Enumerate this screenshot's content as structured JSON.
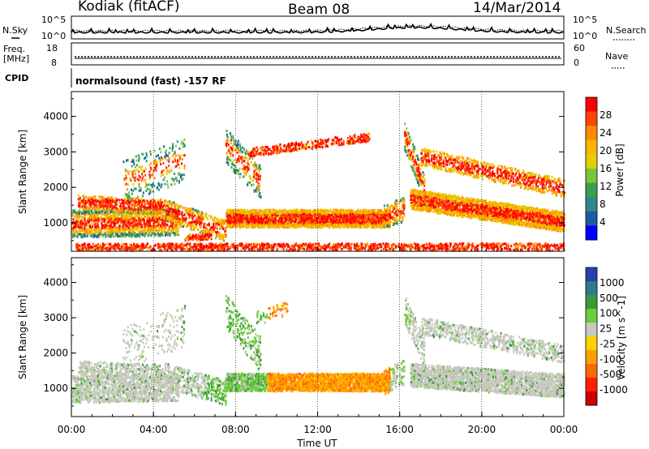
{
  "header": {
    "radar": "Kodiak (fitACF)",
    "beam": "Beam 08",
    "date": "14/Mar/2014"
  },
  "sky_panel": {
    "left_label": "N.Sky",
    "right_label": "N.Search",
    "left_ticks": [
      "10^5",
      "10^0"
    ],
    "right_ticks": [
      "10^5",
      "10^0"
    ]
  },
  "freq_panel": {
    "left_label_1": "Freq.",
    "left_label_2": "[MHz]",
    "right_label": "Nave",
    "left_ticks": [
      "18",
      "8"
    ],
    "right_ticks": [
      "60",
      "0"
    ]
  },
  "cpid_panel": {
    "label": "CPID",
    "mode_text": "normalsound (fast) -157 RF"
  },
  "chart_data": [
    {
      "type": "heatmap",
      "title": "Power",
      "ylabel": "Slant Range [km]",
      "xlabel": "Time UT",
      "ylim": [
        200,
        4700
      ],
      "y_ticks": [
        "1000",
        "2000",
        "3000",
        "4000"
      ],
      "x_ticks": [
        "00:00",
        "04:00",
        "08:00",
        "12:00",
        "16:00",
        "20:00",
        "00:00"
      ],
      "colorbar_label": "Power [dB]",
      "colorbar_ticks": [
        "28",
        "24",
        "20",
        "16",
        "12",
        "8",
        "4"
      ],
      "colorbar_colors": [
        "#ff0000",
        "#ff4500",
        "#ff8c00",
        "#ffb400",
        "#e0d000",
        "#7cc43a",
        "#3aa050",
        "#2e8a8a",
        "#1e5aa0",
        "#0000ff"
      ]
    },
    {
      "type": "heatmap",
      "title": "Velocity",
      "ylabel": "Slant Range [km]",
      "xlabel": "Time UT",
      "ylim": [
        200,
        4700
      ],
      "y_ticks": [
        "1000",
        "2000",
        "3000",
        "4000"
      ],
      "x_ticks": [
        "00:00",
        "04:00",
        "08:00",
        "12:00",
        "16:00",
        "20:00",
        "00:00"
      ],
      "colorbar_label": "Velocity [m s^-1]",
      "colorbar_ticks": [
        "1000",
        "500",
        "100",
        "25",
        "-25",
        "-100",
        "-500",
        "-1000"
      ],
      "colorbar_colors": [
        "#2a3fb0",
        "#2e7d8c",
        "#3a9a3a",
        "#6acd3a",
        "#c8c8c0",
        "#ffd000",
        "#ffa000",
        "#ff6a00",
        "#ff2000",
        "#d00000"
      ]
    }
  ]
}
